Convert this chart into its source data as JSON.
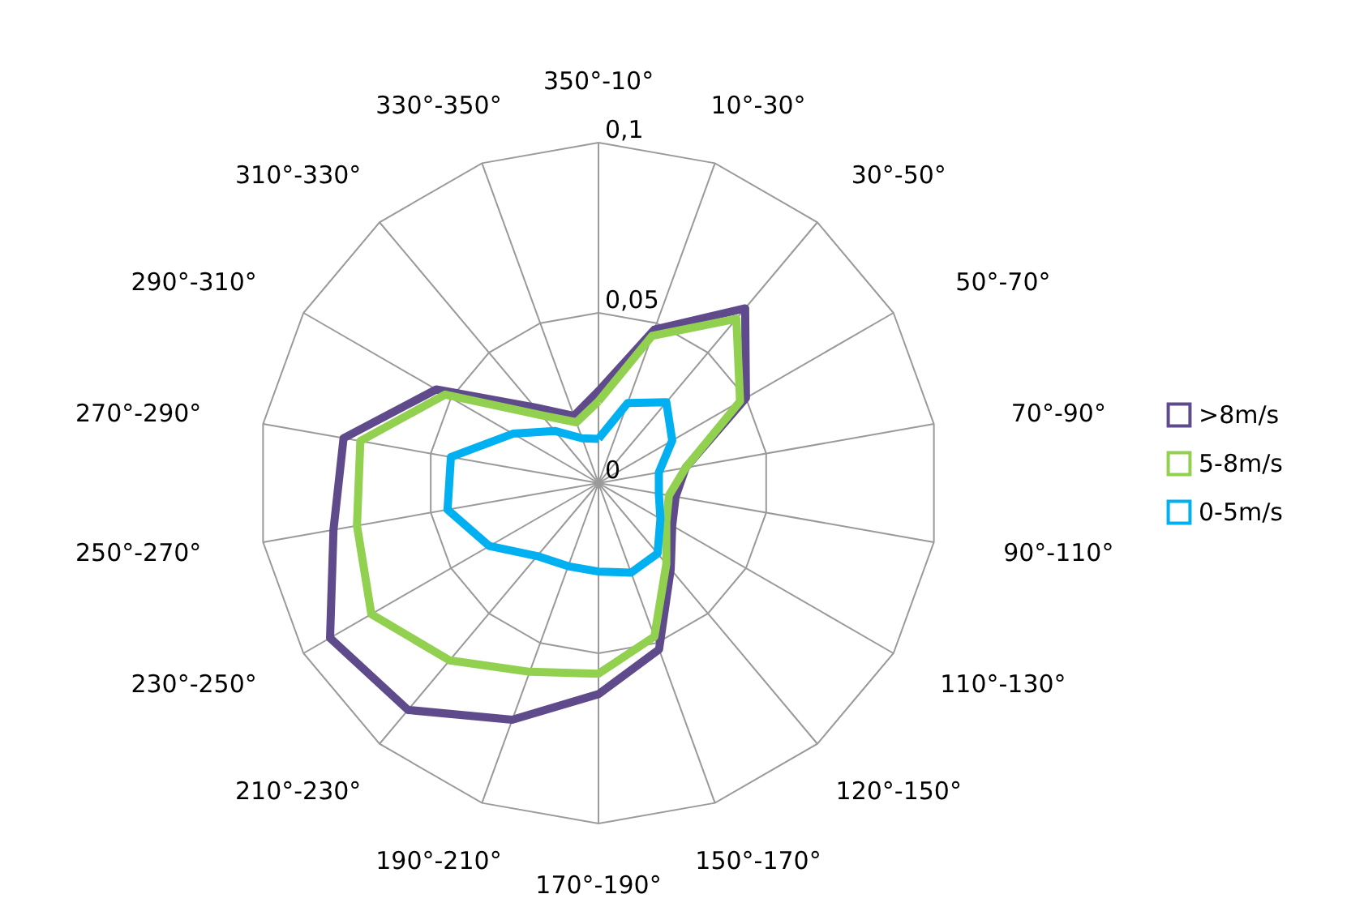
{
  "chart_data": {
    "type": "radar",
    "categories": [
      "350°-10°",
      "10°-30°",
      "30°-50°",
      "50°-70°",
      "70°-90°",
      "90°-110°",
      "110°-130°",
      "120°-150°",
      "150°-170°",
      "170°-190°",
      "190°-210°",
      "210°-230°",
      "230°-250°",
      "250°-270°",
      "270°-290°",
      "290°-310°",
      "310°-330°",
      "330°-350°"
    ],
    "series": [
      {
        "name": ">8m/s",
        "color": "#5f4b8b",
        "values": [
          0.027,
          0.048,
          0.067,
          0.05,
          0.026,
          0.023,
          0.025,
          0.033,
          0.052,
          0.062,
          0.074,
          0.087,
          0.091,
          0.079,
          0.076,
          0.055,
          0.029,
          0.021
        ]
      },
      {
        "name": "5-8m/s",
        "color": "#92d050",
        "values": [
          0.024,
          0.046,
          0.063,
          0.048,
          0.026,
          0.021,
          0.023,
          0.031,
          0.048,
          0.056,
          0.059,
          0.068,
          0.077,
          0.072,
          0.071,
          0.052,
          0.026,
          0.019
        ]
      },
      {
        "name": "0-5m/s",
        "color": "#00b0f0",
        "values": [
          0.013,
          0.025,
          0.031,
          0.025,
          0.018,
          0.018,
          0.021,
          0.027,
          0.028,
          0.026,
          0.026,
          0.028,
          0.037,
          0.045,
          0.044,
          0.029,
          0.02,
          0.014
        ]
      }
    ],
    "ylim": [
      0,
      0.1
    ],
    "yticks": [
      {
        "value": 0,
        "label": "0"
      },
      {
        "value": 0.05,
        "label": "0,05"
      },
      {
        "value": 0.1,
        "label": "0,1"
      }
    ],
    "grid": true,
    "legend": "right"
  }
}
